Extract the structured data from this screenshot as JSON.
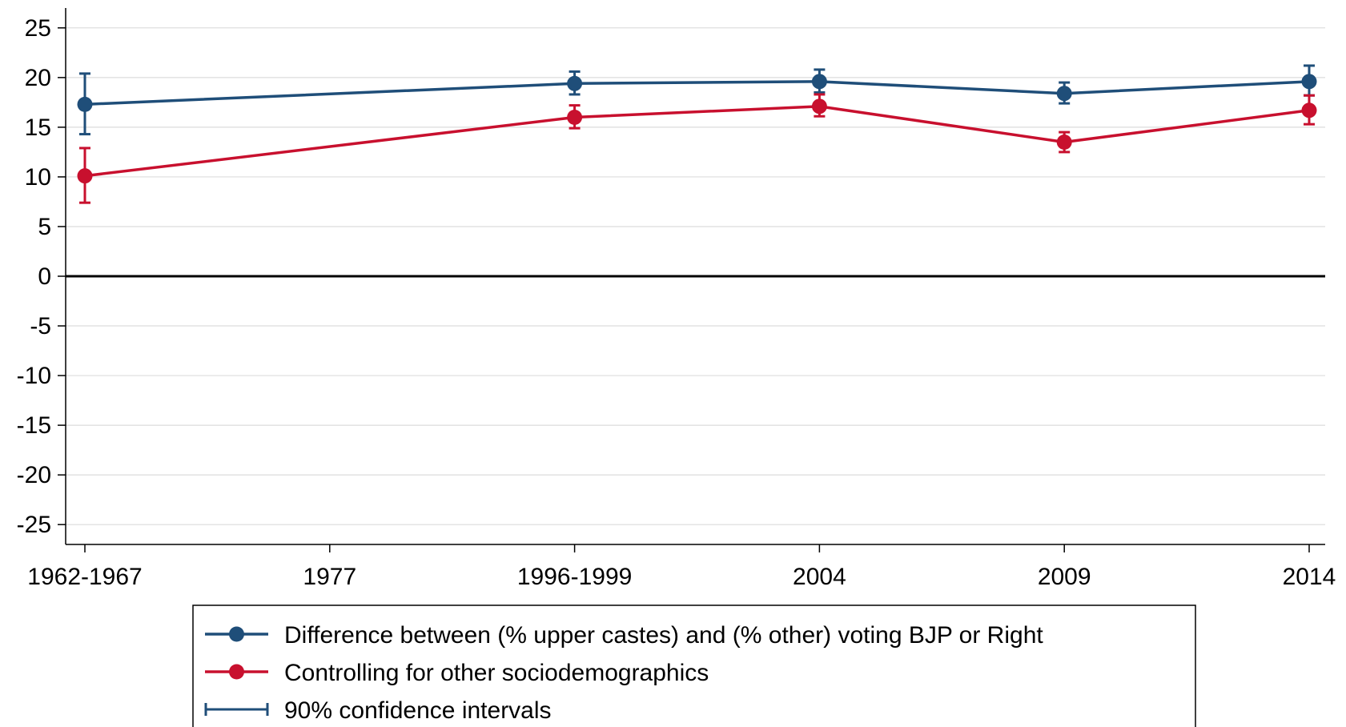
{
  "chart_data": {
    "type": "line",
    "title": "",
    "xlabel": "",
    "ylabel": "",
    "categories": [
      "1962-1967",
      "1977",
      "1996-1999",
      "2004",
      "2009",
      "2014"
    ],
    "ylim": [
      -27,
      27
    ],
    "yticks": [
      -25,
      -20,
      -15,
      -10,
      -5,
      0,
      5,
      10,
      15,
      20,
      25
    ],
    "ytick_labels": [
      "-25",
      "-20",
      "-15",
      "-10",
      "-5",
      "0",
      "5",
      "10",
      "15",
      "20",
      "25"
    ],
    "grid": true,
    "reference_line_y": 0,
    "legend_position": "bottom",
    "series": [
      {
        "name": "Difference between (% upper castes) and (% other) voting BJP or Right",
        "color": "#1f4e79",
        "points": [
          {
            "x": "1962-1967",
            "y": 17.3,
            "lo": 14.3,
            "hi": 20.4
          },
          {
            "x": "1996-1999",
            "y": 19.4,
            "lo": 18.3,
            "hi": 20.6
          },
          {
            "x": "2004",
            "y": 19.6,
            "lo": 18.5,
            "hi": 20.8
          },
          {
            "x": "2009",
            "y": 18.4,
            "lo": 17.4,
            "hi": 19.5
          },
          {
            "x": "2014",
            "y": 19.6,
            "lo": 18.2,
            "hi": 21.2
          }
        ]
      },
      {
        "name": "Controlling for other sociodemographics",
        "color": "#c8102e",
        "points": [
          {
            "x": "1962-1967",
            "y": 10.1,
            "lo": 7.4,
            "hi": 12.9
          },
          {
            "x": "1996-1999",
            "y": 16.0,
            "lo": 14.9,
            "hi": 17.2
          },
          {
            "x": "2004",
            "y": 17.1,
            "lo": 16.1,
            "hi": 18.3
          },
          {
            "x": "2009",
            "y": 13.5,
            "lo": 12.5,
            "hi": 14.5
          },
          {
            "x": "2014",
            "y": 16.7,
            "lo": 15.3,
            "hi": 18.2
          }
        ]
      }
    ],
    "legend": [
      {
        "label": "Difference between (% upper castes) and (% other) voting BJP or Right",
        "symbol": "line-marker",
        "color": "#1f4e79"
      },
      {
        "label": "Controlling for other sociodemographics",
        "symbol": "line-marker",
        "color": "#c8102e"
      },
      {
        "label": "90% confidence intervals",
        "symbol": "capped-bar",
        "color": "#1f4e79"
      }
    ]
  }
}
